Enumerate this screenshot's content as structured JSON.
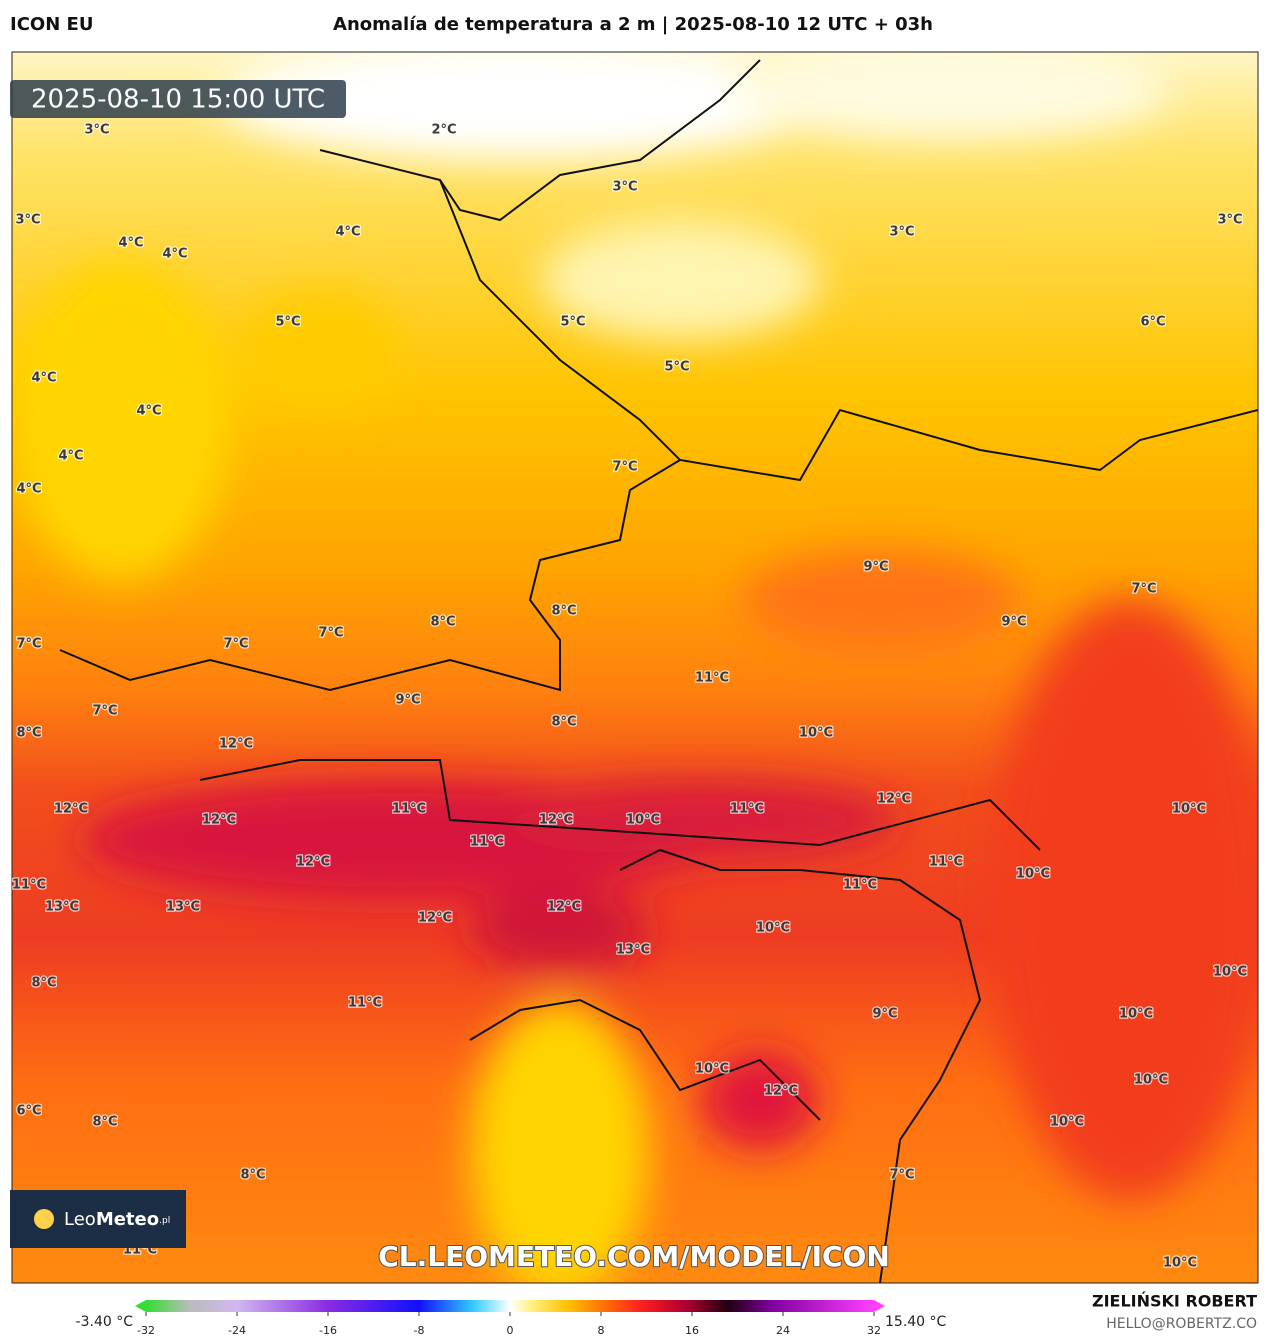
{
  "header": {
    "model": "ICON EU",
    "title": "Anomalía de temperatura a 2 m | 2025-08-10 12 UTC + 03h",
    "author": "ZIELIŃSKI ROBERT",
    "email": "HELLO@ROBERTZ.CO"
  },
  "map": {
    "timestamp": "2025-08-10 15:00 UTC",
    "watermark": "CL.LEOMETEO.COM/MODEL/ICON",
    "logo": {
      "name_light": "Leo",
      "name_bold": "Meteo",
      "suffix": ".pl"
    },
    "contour_labels": [
      "3°C",
      "2°C",
      "3°C",
      "3°C",
      "3°C",
      "3°C",
      "4°C",
      "4°C",
      "4°C",
      "5°C",
      "5°C",
      "6°C",
      "4°C",
      "5°C",
      "4°C",
      "4°C",
      "7°C",
      "4°C",
      "9°C",
      "7°C",
      "8°C",
      "7°C",
      "7°C",
      "7°C",
      "8°C",
      "9°C",
      "11°C",
      "9°C",
      "7°C",
      "8°C",
      "10°C",
      "8°C",
      "12°C",
      "12°C",
      "12°C",
      "12°C",
      "11°C",
      "12°C",
      "10°C",
      "11°C",
      "10°C",
      "11°C",
      "12°C",
      "11°C",
      "10°C",
      "11°C",
      "11°C",
      "13°C",
      "13°C",
      "12°C",
      "12°C",
      "10°C",
      "13°C",
      "10°C",
      "8°C",
      "11°C",
      "9°C",
      "10°C",
      "10°C",
      "10°C",
      "12°C",
      "6°C",
      "8°C",
      "10°C",
      "8°C",
      "7°C",
      "11°C",
      "10°C"
    ]
  },
  "colorbar": {
    "min_label": "-3.40 °C",
    "max_label": "15.40 °C",
    "ticks": [
      -32,
      -24,
      -16,
      -8,
      0,
      8,
      16,
      24,
      32
    ]
  }
}
